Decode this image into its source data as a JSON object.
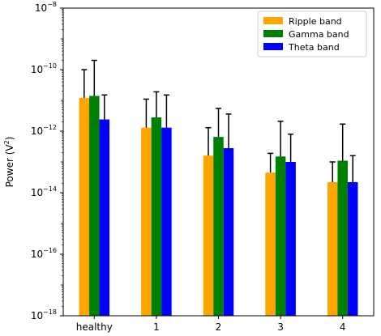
{
  "chart_data": {
    "type": "bar",
    "title": "",
    "xlabel": "",
    "ylabel": "Power (V",
    "ylabel_sup": "2",
    "ylabel_close": ")",
    "y_scale": "log",
    "ylim": [
      1e-18,
      1e-08
    ],
    "y_ticks": [
      {
        "base": "10",
        "exp": "−18",
        "value": 1e-18
      },
      {
        "base": "10",
        "exp": "−16",
        "value": 1e-16
      },
      {
        "base": "10",
        "exp": "−14",
        "value": 1e-14
      },
      {
        "base": "10",
        "exp": "−12",
        "value": 1e-12
      },
      {
        "base": "10",
        "exp": "−10",
        "value": 1e-10
      },
      {
        "base": "10",
        "exp": "−8",
        "value": 1e-08
      }
    ],
    "categories": [
      "healthy",
      "1",
      "2",
      "3",
      "4"
    ],
    "legend_position": "top-right",
    "grid": false,
    "series": [
      {
        "name": "Ripple band",
        "color": "#FFA500",
        "values": [
          1.2e-11,
          1.3e-12,
          1.6e-13,
          4.5e-14,
          2.2e-14
        ],
        "error_upper": [
          1e-10,
          1.1e-11,
          1.3e-12,
          1.9e-13,
          1e-13
        ]
      },
      {
        "name": "Gamma band",
        "color": "#008000",
        "values": [
          1.4e-11,
          2.8e-12,
          6.5e-13,
          1.5e-13,
          1.1e-13
        ],
        "error_upper": [
          2e-10,
          1.9e-11,
          5.5e-12,
          2.1e-12,
          1.7e-12
        ]
      },
      {
        "name": "Theta band",
        "color": "#0000FF",
        "values": [
          2.4e-12,
          1.3e-12,
          2.8e-13,
          1e-13,
          2.2e-14
        ],
        "error_upper": [
          1.5e-11,
          1.5e-11,
          3.6e-12,
          8e-13,
          1.6e-13
        ]
      }
    ]
  }
}
